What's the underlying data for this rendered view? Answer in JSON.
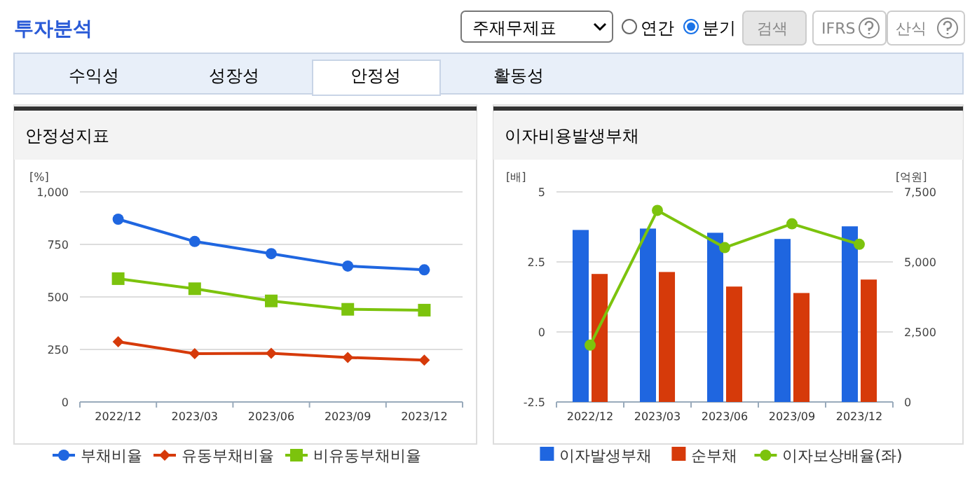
{
  "chart_data": [
    {
      "type": "other",
      "title": "투자분석",
      "annotations": [
        "주재무제표",
        "연간",
        "분기",
        "검색",
        "IFRS",
        "산식",
        "수익성",
        "성장성",
        "안정성",
        "활동성"
      ]
    },
    {
      "type": "line",
      "title": "안정성지표",
      "ylabel": "[%]",
      "categories": [
        "2022/12",
        "2023/03",
        "2023/06",
        "2023/09",
        "2023/12"
      ],
      "ylim": [
        0,
        1000
      ],
      "yticks": [
        0,
        250,
        500,
        {
          "value": 750,
          "label": "750"
        },
        {
          "value": 1000,
          "label": "1,000"
        }
      ],
      "grid": "y",
      "legend": "bottom",
      "series": [
        {
          "name": "부채비율",
          "color": "#1f66e0",
          "marker": "circle",
          "values": [
            870,
            764,
            706,
            647,
            629
          ]
        },
        {
          "name": "유동부채비율",
          "color": "#d63a0a",
          "marker": "diamond",
          "values": [
            287,
            230,
            232,
            212,
            199
          ]
        },
        {
          "name": "비유동부채비율",
          "color": "#7cc30d",
          "marker": "square",
          "values": [
            587,
            539,
            481,
            441,
            437
          ]
        }
      ]
    },
    {
      "type": "bar",
      "title": "이자비용발생부채",
      "ylabel": "[배]",
      "y2label": "[억원]",
      "categories": [
        "2022/12",
        "2023/03",
        "2023/06",
        "2023/09",
        "2023/12"
      ],
      "ylim": [
        -2.5,
        5
      ],
      "yticks": [
        -2.5,
        0,
        2.5,
        5
      ],
      "y2lim": [
        0,
        7500
      ],
      "y2ticks": [
        0,
        {
          "value": 2500,
          "label": "2,500"
        },
        {
          "value": 5000,
          "label": "5,000"
        },
        {
          "value": 7500,
          "label": "7,500"
        }
      ],
      "grid": "y",
      "legend": "bottom",
      "series": [
        {
          "name": "이자발생부채",
          "color": "#1f66e0",
          "axis": "y2",
          "values": [
            6140,
            6190,
            6040,
            5820,
            6270
          ]
        },
        {
          "name": "순부채",
          "color": "#d63a0a",
          "axis": "y2",
          "values": [
            4570,
            4640,
            4120,
            3890,
            4370
          ]
        },
        {
          "name": "이자보상배율(좌)",
          "type": "line",
          "color": "#7cc30d",
          "marker": "circle",
          "values": [
            -0.47,
            4.34,
            3.01,
            3.86,
            3.13
          ]
        }
      ]
    }
  ]
}
